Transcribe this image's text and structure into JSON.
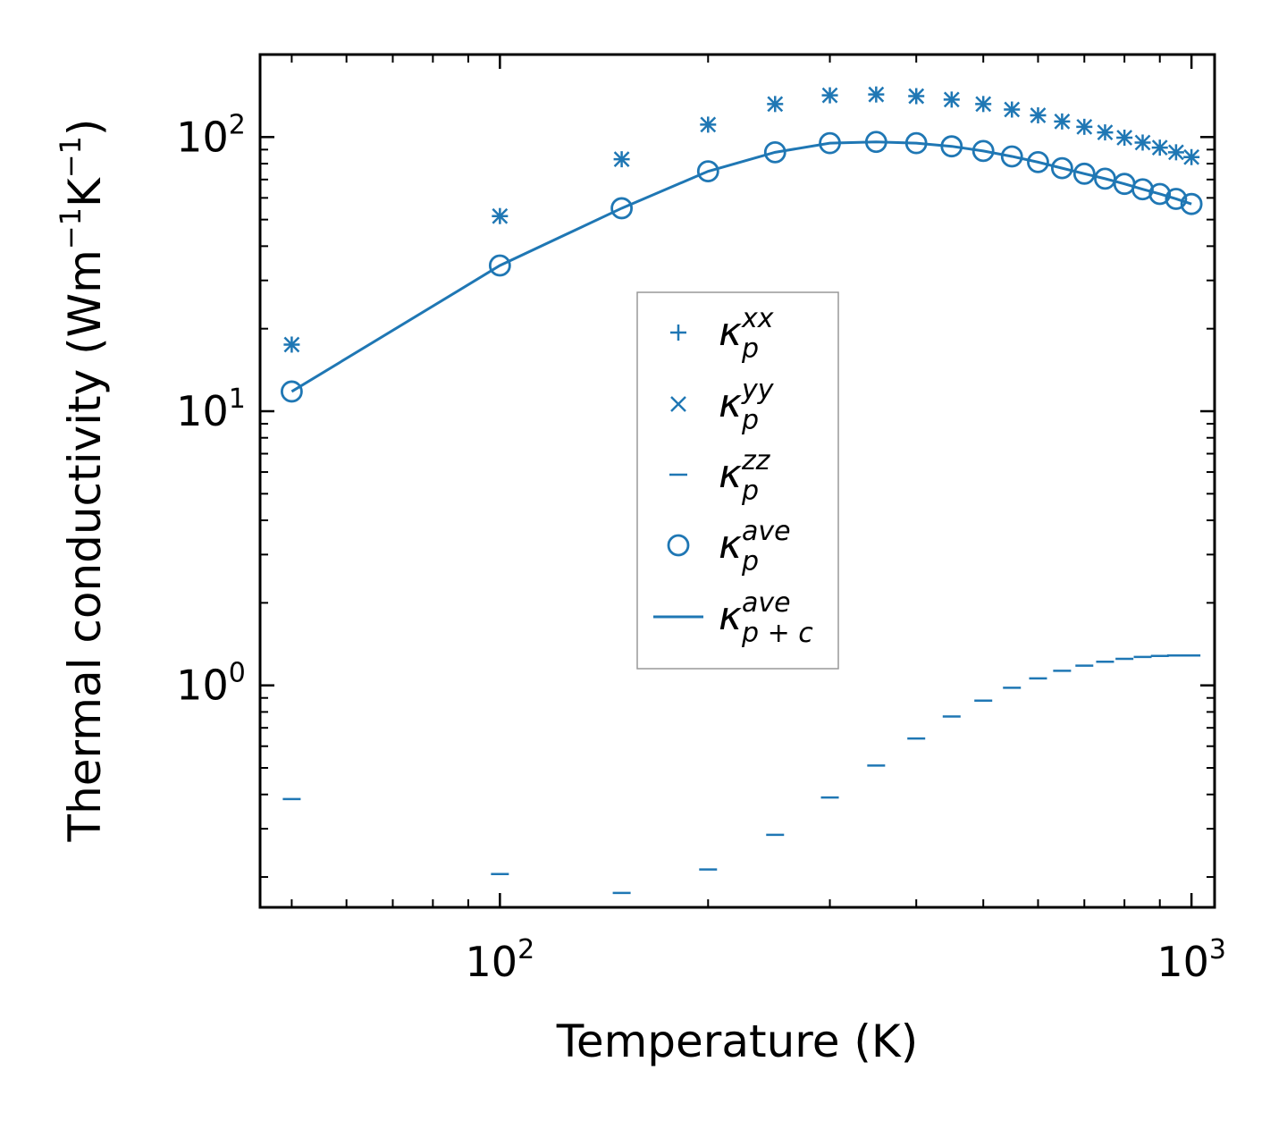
{
  "chart_data": {
    "type": "scatter",
    "xscale": "log",
    "yscale": "log",
    "xlim": [
      45,
      1080
    ],
    "ylim": [
      0.155,
      200
    ],
    "xlabel": "Temperature (K)",
    "ylabel_main": "Thermal conductivity (Wm",
    "ylabel_exp1": "−1",
    "ylabel_mid": "K",
    "ylabel_exp2": "−1",
    "ylabel_end": ")",
    "x_ticks": [
      {
        "value": 100,
        "base": "10",
        "exp": "2"
      },
      {
        "value": 1000,
        "base": "10",
        "exp": "3"
      }
    ],
    "y_ticks": [
      {
        "value": 1,
        "base": "10",
        "exp": "0"
      },
      {
        "value": 10,
        "base": "10",
        "exp": "1"
      },
      {
        "value": 100,
        "base": "10",
        "exp": "2"
      }
    ],
    "x": [
      50,
      100,
      150,
      200,
      250,
      300,
      350,
      400,
      450,
      500,
      550,
      600,
      650,
      700,
      750,
      800,
      850,
      900,
      950,
      1000
    ],
    "series": [
      {
        "name": "kappa_p^xx",
        "marker": "plus",
        "values": [
          17.5,
          51.5,
          83,
          111,
          132,
          142,
          143,
          141,
          137,
          132,
          126,
          120,
          114,
          109,
          104,
          99.5,
          95.5,
          91.5,
          88,
          84.5
        ]
      },
      {
        "name": "kappa_p^yy",
        "marker": "x",
        "values": [
          17.5,
          51.5,
          83,
          111,
          132,
          142,
          143,
          141,
          137,
          132,
          126,
          120,
          114,
          109,
          104,
          99.5,
          95.5,
          91.5,
          88,
          84.5
        ]
      },
      {
        "name": "kappa_p^zz",
        "marker": "hline",
        "values": [
          0.385,
          0.205,
          0.175,
          0.213,
          0.285,
          0.39,
          0.51,
          0.64,
          0.77,
          0.88,
          0.98,
          1.06,
          1.13,
          1.18,
          1.22,
          1.25,
          1.27,
          1.28,
          1.285,
          1.285
        ]
      },
      {
        "name": "kappa_p^ave",
        "marker": "circle",
        "values": [
          11.8,
          34,
          55,
          75,
          88,
          95,
          96,
          95,
          92.5,
          89,
          85,
          81,
          77,
          73.5,
          70.5,
          67.5,
          64.5,
          62,
          59.5,
          57
        ]
      },
      {
        "name": "kappa_p+c^ave",
        "marker": "line",
        "values": [
          11.8,
          34,
          55,
          75,
          88,
          95,
          96,
          95,
          92.5,
          89,
          85,
          81,
          77,
          73.5,
          70.5,
          67.5,
          64.5,
          62,
          59.5,
          57
        ]
      }
    ],
    "legend": {
      "placement": "center",
      "entries": [
        {
          "marker": "plus",
          "base": "κ",
          "sub": "p",
          "sup": "xx"
        },
        {
          "marker": "x",
          "base": "κ",
          "sub": "p",
          "sup": "yy"
        },
        {
          "marker": "hline",
          "base": "κ",
          "sub": "p",
          "sup": "zz"
        },
        {
          "marker": "circle",
          "base": "κ",
          "sub": "p",
          "sup": "ave"
        },
        {
          "marker": "line",
          "base": "κ",
          "sub": "p + c",
          "sup": "ave"
        }
      ]
    },
    "color": "#1f77b4"
  }
}
